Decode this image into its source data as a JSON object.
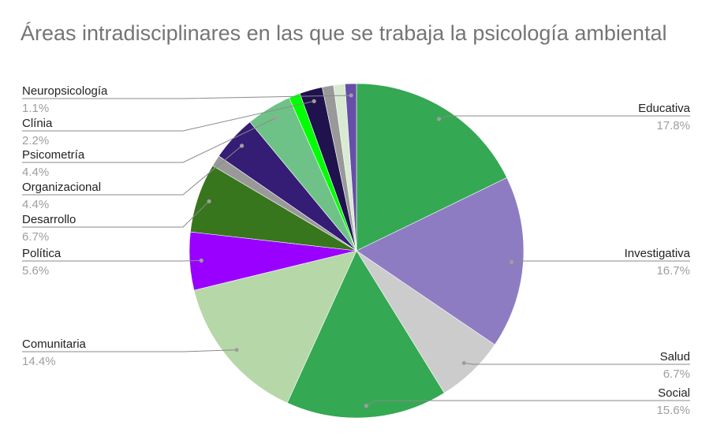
{
  "chart_data": {
    "type": "pie",
    "title": "Áreas intradisciplinares en las que se trabaja la psicología ambiental",
    "slices": [
      {
        "label": "Educativa",
        "value": 17.8,
        "display": "17.8%",
        "color": "#34a853"
      },
      {
        "label": "Investigativa",
        "value": 16.7,
        "display": "16.7%",
        "color": "#8e7cc3"
      },
      {
        "label": "Salud",
        "value": 6.7,
        "display": "6.7%",
        "color": "#cccccc"
      },
      {
        "label": "Social",
        "value": 15.6,
        "display": "15.6%",
        "color": "#34a853"
      },
      {
        "label": "Comunitaria",
        "value": 14.4,
        "display": "14.4%",
        "color": "#b6d7a8"
      },
      {
        "label": "Política",
        "value": 5.6,
        "display": "5.6%",
        "color": "#9900ff"
      },
      {
        "label": "Desarrollo",
        "value": 6.7,
        "display": "6.7%",
        "color": "#38761d"
      },
      {
        "label": "",
        "value": 1.1,
        "display": "",
        "color": "#999999"
      },
      {
        "label": "Organizacional",
        "value": 4.4,
        "display": "4.4%",
        "color": "#351c75"
      },
      {
        "label": "Psicometría",
        "value": 4.4,
        "display": "4.4%",
        "color": "#6fc287"
      },
      {
        "label": "",
        "value": 1.1,
        "display": "",
        "color": "#00ff00"
      },
      {
        "label": "Clínia",
        "value": 2.2,
        "display": "2.2%",
        "color": "#20124d"
      },
      {
        "label": "",
        "value": 1.1,
        "display": "",
        "color": "#999999"
      },
      {
        "label": "",
        "value": 1.1,
        "display": "",
        "color": "#d9ead3"
      },
      {
        "label": "Neuropsicología",
        "value": 1.1,
        "display": "1.1%",
        "color": "#674ea7"
      }
    ],
    "legend": "labels beside slices"
  }
}
